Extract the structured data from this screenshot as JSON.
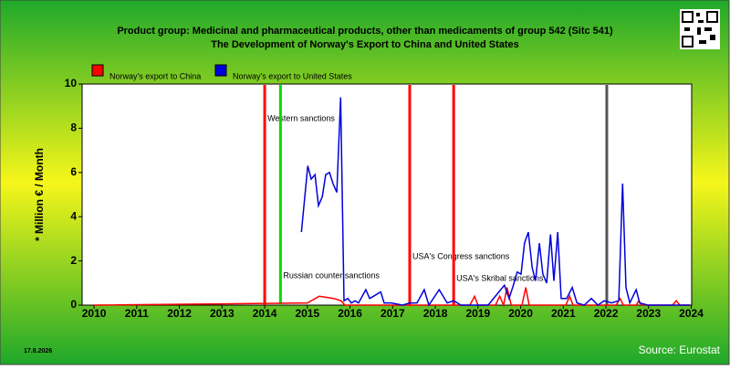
{
  "chart_data": {
    "type": "line",
    "title": "Product group: Medicinal and pharmaceutical products, other than medicaments of group 542 (Sitc 541)",
    "subtitle": "The Development of Norway's Export to  China and United States",
    "y_label": "* Million € / Month",
    "date": "17.8.2026",
    "source": "Source: Eurostat",
    "xlim": [
      2009.72,
      2024.01
    ],
    "xticks": [
      2010,
      2011,
      2012,
      2013,
      2014,
      2015,
      2016,
      2017,
      2018,
      2019,
      2020,
      2021,
      2022,
      2023,
      2024
    ],
    "ylim": [
      0,
      10
    ],
    "yticks": [
      0,
      2,
      4,
      6,
      8,
      10
    ],
    "events": [
      {
        "x": 2014.0,
        "label": "Western sanctions",
        "color": "#ff0000"
      },
      {
        "x": 2014.37,
        "label": "Russian counter sanctions",
        "color": "#00dd00"
      },
      {
        "x": 2017.4,
        "label": "USA's Congress sanctions",
        "color": "#ff0000"
      },
      {
        "x": 2018.43,
        "label": "USA's Skribal sanctions",
        "color": "#ff0000"
      },
      {
        "x": 2022.02,
        "color": "#555555"
      }
    ],
    "series": [
      {
        "name": "Norway's export to China",
        "color": "#ff0000",
        "x": [
          2010.0,
          2015.0,
          2015.28,
          2015.45,
          2015.62,
          2015.79,
          2015.88,
          2018.81,
          2018.92,
          2019.0,
          2019.41,
          2019.51,
          2019.6,
          2019.68,
          2019.78,
          2020.03,
          2020.12,
          2020.2,
          2021.06,
          2021.15,
          2021.23,
          2022.24,
          2022.33,
          2022.41,
          2022.71,
          2022.77,
          2022.84,
          2023.56,
          2023.65,
          2023.73,
          2023.97
        ],
        "values": [
          0,
          0.1,
          0.4,
          0.35,
          0.3,
          0.2,
          0,
          0,
          0.4,
          0,
          0,
          0.4,
          0,
          0.8,
          0,
          0,
          0.8,
          0,
          0,
          0.4,
          0,
          0,
          0.3,
          0,
          0,
          0.2,
          0,
          0,
          0.2,
          0,
          0
        ]
      },
      {
        "name": "Norway's export to United States",
        "color": "#0000dd",
        "x": [
          2014.86,
          2015.01,
          2015.09,
          2015.18,
          2015.26,
          2015.35,
          2015.43,
          2015.52,
          2015.6,
          2015.69,
          2015.78,
          2015.86,
          2015.95,
          2016.03,
          2016.12,
          2016.2,
          2016.37,
          2016.46,
          2016.55,
          2016.72,
          2016.8,
          2016.97,
          2017.23,
          2017.4,
          2017.57,
          2017.74,
          2017.85,
          2018.09,
          2018.28,
          2018.43,
          2018.6,
          2018.92,
          2019.24,
          2019.45,
          2019.62,
          2019.73,
          2019.83,
          2019.92,
          2020.01,
          2020.09,
          2020.18,
          2020.27,
          2020.35,
          2020.44,
          2020.52,
          2020.61,
          2020.7,
          2020.78,
          2020.87,
          2020.95,
          2021.08,
          2021.21,
          2021.32,
          2021.49,
          2021.66,
          2021.81,
          2021.96,
          2022.13,
          2022.3,
          2022.39,
          2022.47,
          2022.56,
          2022.71,
          2022.79,
          2022.98,
          2023.63,
          2023.97
        ],
        "values": [
          3.3,
          6.3,
          5.7,
          5.9,
          4.5,
          4.9,
          5.9,
          6.0,
          5.5,
          5.1,
          9.4,
          0.2,
          0.3,
          0.1,
          0.2,
          0.1,
          0.7,
          0.3,
          0.4,
          0.6,
          0.1,
          0.1,
          0,
          0.1,
          0.1,
          0.7,
          0,
          0.7,
          0.1,
          0.2,
          0,
          0,
          0,
          0.5,
          0.9,
          0.3,
          0.9,
          1.5,
          1.4,
          2.8,
          3.3,
          1.7,
          1.1,
          2.8,
          1.4,
          1.0,
          3.2,
          1.1,
          3.3,
          0.3,
          0.3,
          0.8,
          0.1,
          0,
          0.3,
          0,
          0.2,
          0.1,
          0.2,
          5.5,
          0.8,
          0.1,
          0.7,
          0.1,
          0,
          0,
          0
        ]
      }
    ]
  }
}
